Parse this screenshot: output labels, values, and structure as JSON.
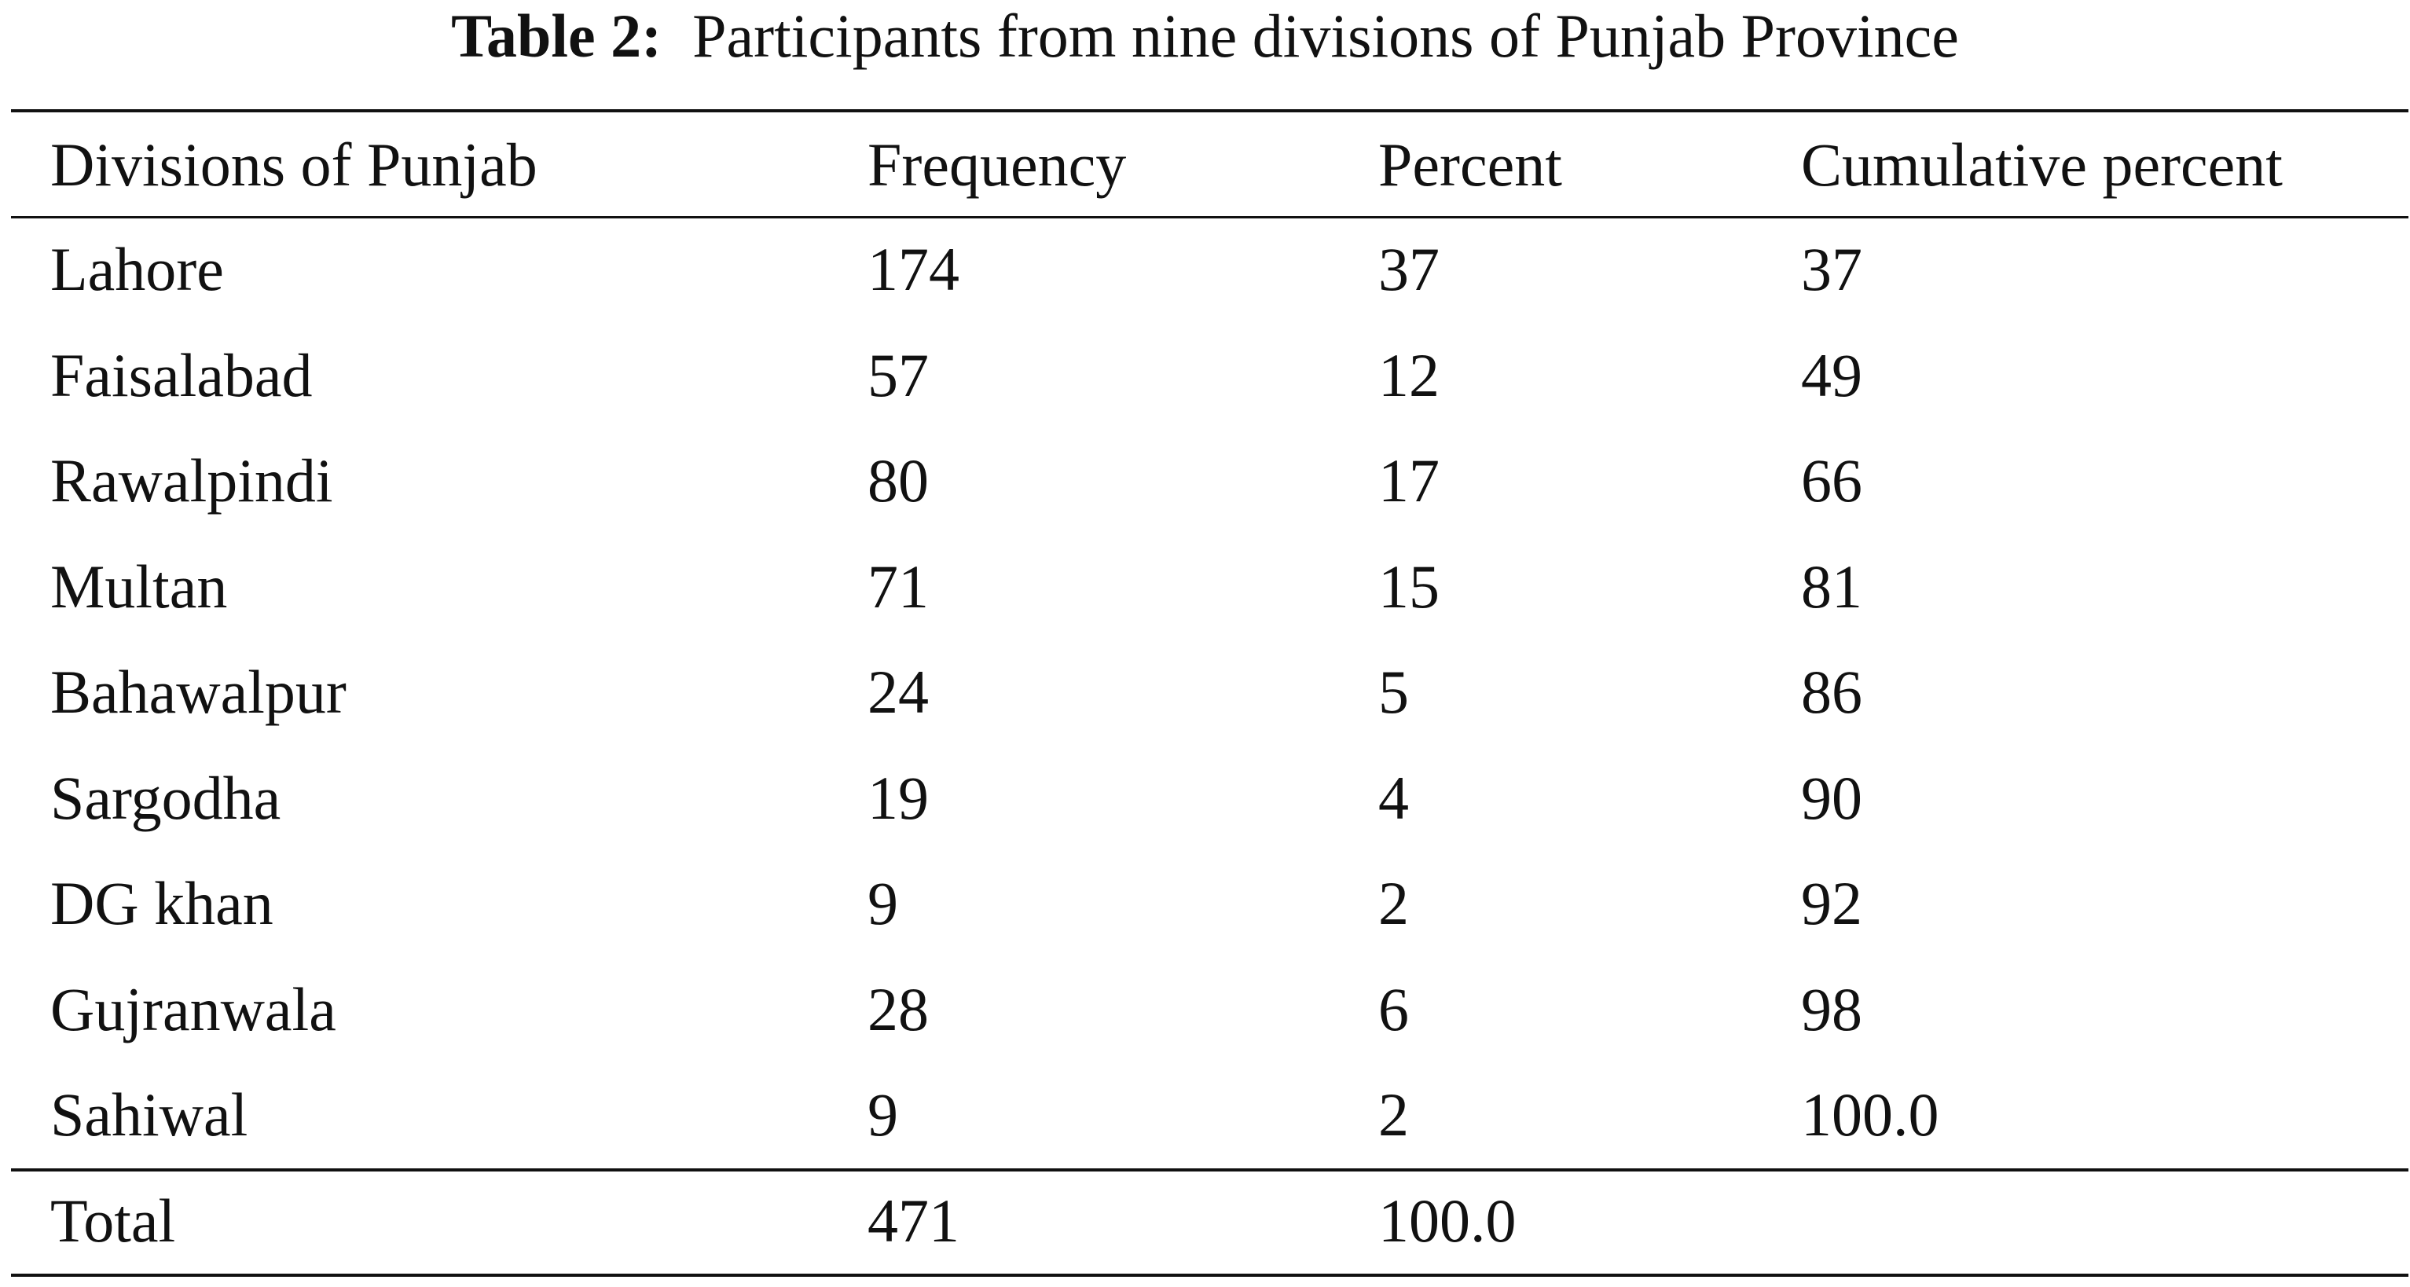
{
  "caption": {
    "label": "Table 2:",
    "text": "Participants from nine divisions of Punjab Province"
  },
  "table": {
    "headers": [
      "Divisions of Punjab",
      "Frequency",
      "Percent",
      "Cumulative percent"
    ],
    "rows": [
      [
        "Lahore",
        "174",
        "37",
        "37"
      ],
      [
        "Faisalabad",
        "57",
        "12",
        "49"
      ],
      [
        "Rawalpindi",
        "80",
        "17",
        "66"
      ],
      [
        "Multan",
        "71",
        "15",
        "81"
      ],
      [
        "Bahawalpur",
        "24",
        "5",
        "86"
      ],
      [
        "Sargodha",
        "19",
        "4",
        "90"
      ],
      [
        "DG khan",
        "9",
        "2",
        "92"
      ],
      [
        "Gujranwala",
        "28",
        "6",
        "98"
      ],
      [
        "Sahiwal",
        "9",
        "2",
        "100.0"
      ]
    ],
    "total": [
      "Total",
      "471",
      "100.0",
      ""
    ]
  }
}
